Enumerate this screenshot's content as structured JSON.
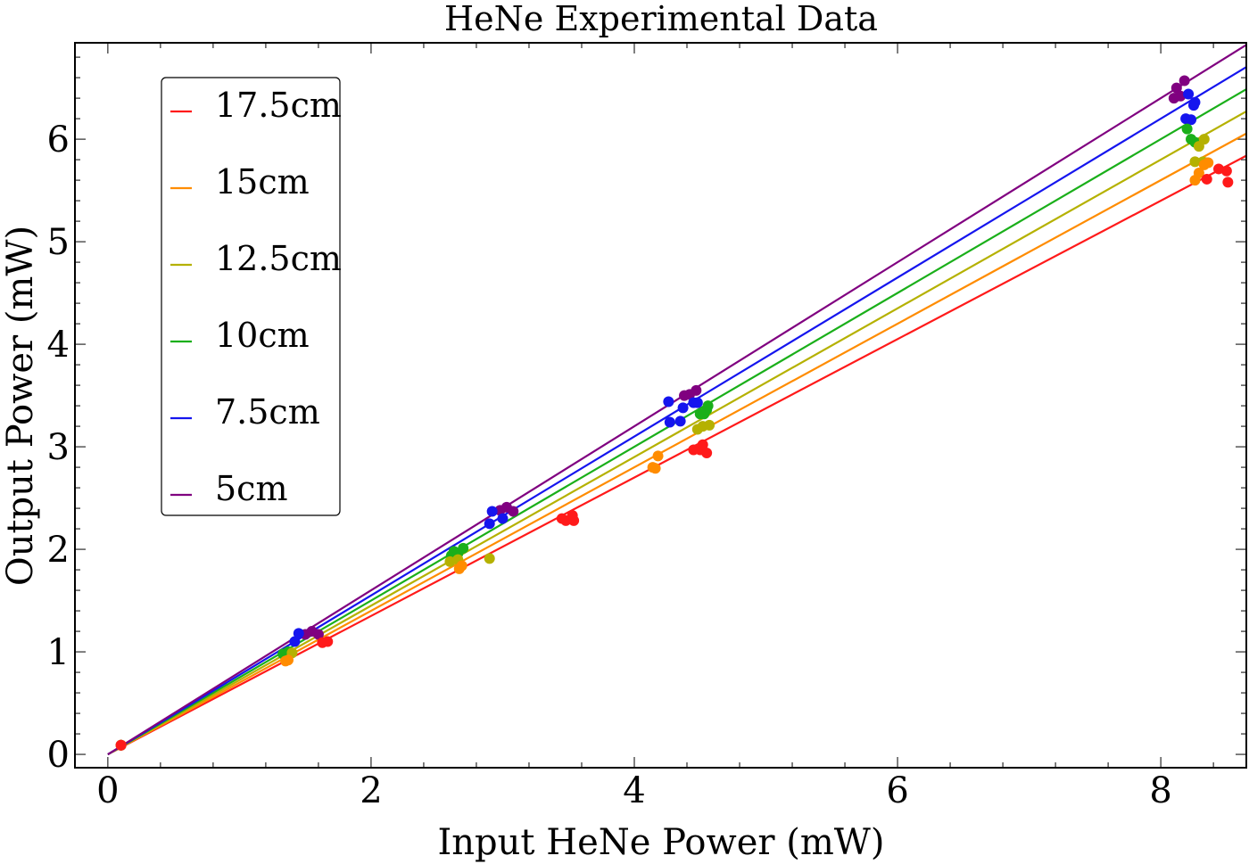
{
  "chart_data": {
    "type": "scatter",
    "title": "HeNe Experimental Data",
    "xlabel": "Input HeNe Power (mW)",
    "ylabel": "Output Power (mW)",
    "xlim": [
      -0.25,
      8.65
    ],
    "ylim": [
      -0.13,
      6.94
    ],
    "xticks": [
      0,
      2,
      4,
      6,
      8
    ],
    "yticks": [
      0,
      1,
      2,
      3,
      4,
      5,
      6
    ],
    "legend_position": "top-left",
    "series": [
      {
        "name": "17.5cm",
        "color": "#ff1a1a",
        "fit_slope": 0.675,
        "points": [
          [
            0.1,
            0.09
          ],
          [
            1.63,
            1.09
          ],
          [
            1.67,
            1.1
          ],
          [
            3.45,
            2.3
          ],
          [
            3.48,
            2.28
          ],
          [
            3.53,
            2.33
          ],
          [
            3.54,
            2.28
          ],
          [
            4.45,
            2.97
          ],
          [
            4.5,
            2.97
          ],
          [
            4.52,
            3.02
          ],
          [
            4.55,
            2.94
          ],
          [
            8.35,
            5.61
          ],
          [
            8.44,
            5.71
          ],
          [
            8.5,
            5.69
          ],
          [
            8.51,
            5.58
          ]
        ]
      },
      {
        "name": "15cm",
        "color": "#ff8c00",
        "fit_slope": 0.7,
        "points": [
          [
            0.1,
            0.09
          ],
          [
            1.35,
            0.91
          ],
          [
            1.37,
            0.92
          ],
          [
            2.67,
            1.81
          ],
          [
            2.69,
            1.84
          ],
          [
            4.14,
            2.8
          ],
          [
            4.16,
            2.79
          ],
          [
            4.18,
            2.91
          ],
          [
            8.26,
            5.6
          ],
          [
            8.29,
            5.67
          ],
          [
            8.33,
            5.75
          ],
          [
            8.36,
            5.77
          ]
        ]
      },
      {
        "name": "12.5cm",
        "color": "#b5b100",
        "fit_slope": 0.725,
        "points": [
          [
            0.1,
            0.09
          ],
          [
            1.4,
            0.99
          ],
          [
            2.6,
            1.88
          ],
          [
            2.66,
            1.9
          ],
          [
            2.9,
            1.91
          ],
          [
            4.48,
            3.17
          ],
          [
            4.52,
            3.2
          ],
          [
            4.57,
            3.21
          ],
          [
            8.26,
            5.78
          ],
          [
            8.29,
            5.93
          ],
          [
            8.32,
            5.78
          ],
          [
            8.33,
            6.0
          ],
          [
            8.35,
            5.77
          ]
        ]
      },
      {
        "name": "10cm",
        "color": "#1aaf1a",
        "fit_slope": 0.75,
        "points": [
          [
            0.1,
            0.09
          ],
          [
            1.33,
            0.98
          ],
          [
            1.37,
            1.0
          ],
          [
            2.61,
            1.94
          ],
          [
            2.63,
            1.98
          ],
          [
            2.66,
            1.96
          ],
          [
            2.7,
            2.01
          ],
          [
            4.5,
            3.32
          ],
          [
            4.53,
            3.32
          ],
          [
            4.55,
            3.36
          ],
          [
            4.56,
            3.4
          ],
          [
            8.2,
            6.1
          ],
          [
            8.23,
            6.0
          ],
          [
            8.26,
            5.97
          ]
        ]
      },
      {
        "name": "7.5cm",
        "color": "#1515ee",
        "fit_slope": 0.775,
        "points": [
          [
            0.1,
            0.09
          ],
          [
            1.42,
            1.1
          ],
          [
            1.45,
            1.18
          ],
          [
            2.9,
            2.25
          ],
          [
            2.92,
            2.37
          ],
          [
            3.0,
            2.3
          ],
          [
            4.26,
            3.44
          ],
          [
            4.27,
            3.24
          ],
          [
            4.35,
            3.25
          ],
          [
            4.37,
            3.38
          ],
          [
            4.45,
            3.43
          ],
          [
            4.48,
            3.43
          ],
          [
            8.19,
            6.2
          ],
          [
            8.23,
            6.19
          ],
          [
            8.25,
            6.33
          ],
          [
            8.26,
            6.36
          ],
          [
            8.21,
            6.44
          ]
        ]
      },
      {
        "name": "5cm",
        "color": "#800080",
        "fit_slope": 0.8,
        "points": [
          [
            0.1,
            0.09
          ],
          [
            1.5,
            1.17
          ],
          [
            1.55,
            1.2
          ],
          [
            1.6,
            1.17
          ],
          [
            2.98,
            2.38
          ],
          [
            3.03,
            2.41
          ],
          [
            3.08,
            2.37
          ],
          [
            4.38,
            3.5
          ],
          [
            4.42,
            3.51
          ],
          [
            4.47,
            3.55
          ],
          [
            8.1,
            6.4
          ],
          [
            8.12,
            6.5
          ],
          [
            8.15,
            6.42
          ],
          [
            8.18,
            6.57
          ]
        ]
      }
    ]
  }
}
